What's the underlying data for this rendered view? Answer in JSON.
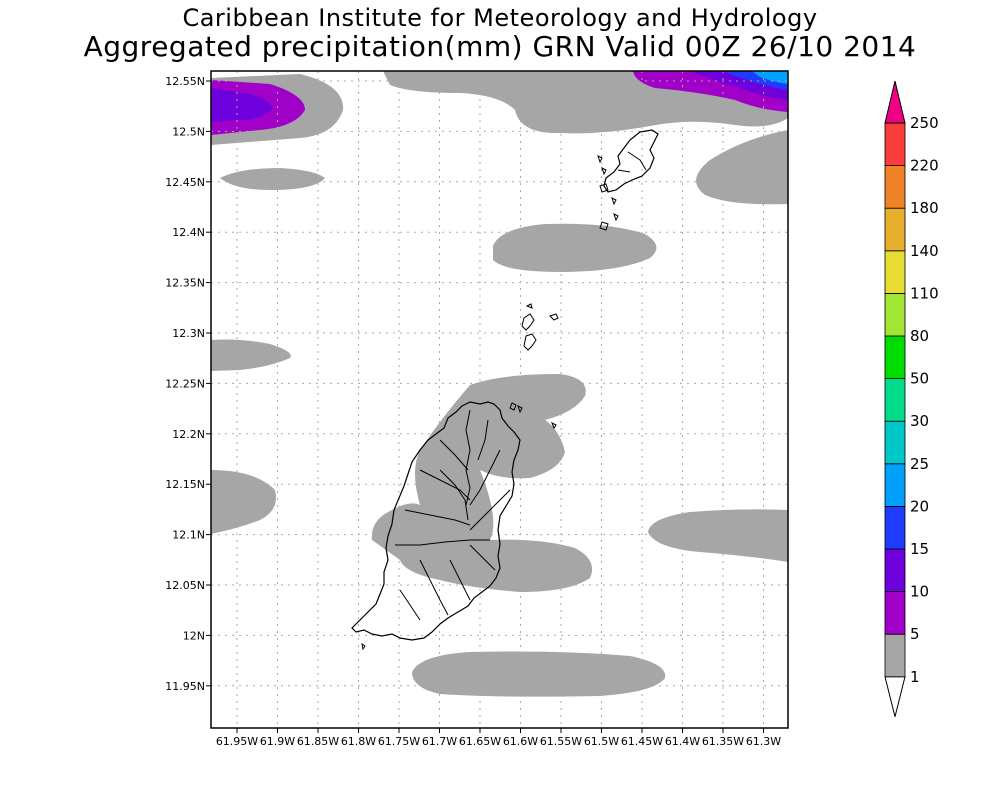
{
  "title_line1": "Caribbean Institute for Meteorology and Hydrology",
  "title_line2": "Aggregated precipitation(mm) GRN Valid 00Z 26/10 2014",
  "lat_labels": [
    "12.55N",
    "12.5N",
    "12.45N",
    "12.4N",
    "12.35N",
    "12.3N",
    "12.25N",
    "12.2N",
    "12.15N",
    "12.1N",
    "12.05N",
    "12N",
    "11.95N"
  ],
  "lon_labels": [
    "61.95W",
    "61.9W",
    "61.85W",
    "61.8W",
    "61.75W",
    "61.7W",
    "61.65W",
    "61.6W",
    "61.55W",
    "61.5W",
    "61.45W",
    "61.4W",
    "61.35W",
    "61.3W"
  ],
  "colorbar": {
    "levels": [
      "1",
      "5",
      "10",
      "15",
      "20",
      "25",
      "30",
      "50",
      "80",
      "110",
      "140",
      "180",
      "220",
      "250"
    ],
    "colors": [
      "#a6a6a6",
      "#a000c8",
      "#6e00dc",
      "#1e3cff",
      "#00a0ff",
      "#00c8c8",
      "#00dc8c",
      "#00dc00",
      "#a0e632",
      "#e6dc32",
      "#e6af2d",
      "#f08228",
      "#fa3c3c",
      "#f00082"
    ]
  }
}
